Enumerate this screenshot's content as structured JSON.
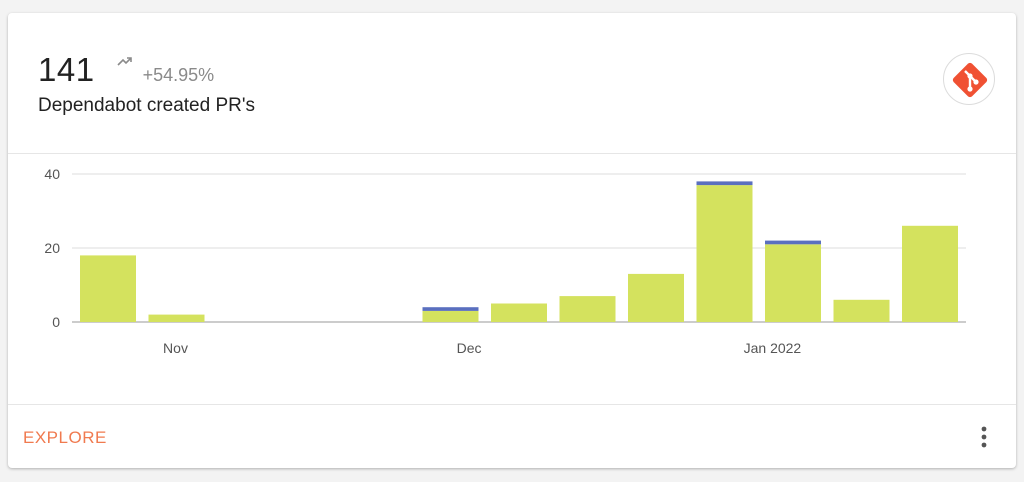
{
  "metric": {
    "value": "141",
    "change": "+54.95%",
    "label": "Dependabot created PR's",
    "trend_icon": "trending-up-icon"
  },
  "logo": {
    "icon": "git-logo-icon",
    "color": "#f05133"
  },
  "footer": {
    "explore_label": "EXPLORE",
    "menu_icon": "more-vertical-icon"
  },
  "chart_data": {
    "type": "bar",
    "stacked": true,
    "ylim": [
      0,
      40
    ],
    "yticks": [
      "0",
      "20",
      "40"
    ],
    "x_tick_labels": [
      "Nov",
      "Dec",
      "Jan 2022"
    ],
    "categories": [
      "2021-10-25",
      "2021-11-01",
      "2021-11-08",
      "2021-11-15",
      "2021-11-22",
      "2021-11-29",
      "2021-12-06",
      "2021-12-13",
      "2021-12-20",
      "2021-12-27",
      "2022-01-03",
      "2022-01-10",
      "2022-01-17"
    ],
    "series": [
      {
        "color": "#d4e25e",
        "values": [
          18,
          2,
          0,
          0,
          0,
          3,
          5,
          7,
          13,
          37,
          21,
          6,
          26
        ]
      },
      {
        "color": "#5a6fbf",
        "values": [
          0,
          0,
          0,
          0,
          0,
          1,
          0,
          0,
          0,
          1,
          1,
          0,
          0
        ]
      }
    ],
    "grid": true,
    "legend": "none"
  }
}
